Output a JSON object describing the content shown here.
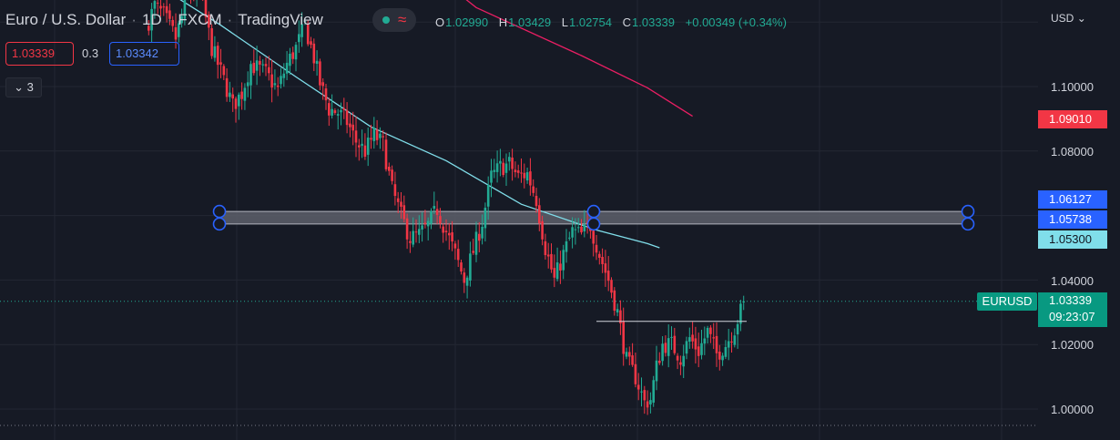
{
  "header": {
    "pair": "Euro / U.S. Dollar",
    "interval": "1D",
    "source": "FXCM",
    "platform": "TradingView",
    "open_label": "O",
    "open": "1.02990",
    "high_label": "H",
    "high": "1.03429",
    "low_label": "L",
    "low": "1.02754",
    "close_label": "C",
    "close": "1.03339",
    "change": "+0.00349 (+0.34%)"
  },
  "trade": {
    "sell_price": "1.03339",
    "spread": "0.3",
    "buy_price": "1.03342"
  },
  "indicators_count": "3",
  "currency": "USD",
  "price_axis": {
    "ticks": [
      "1.10000",
      "1.08000",
      "1.04000",
      "1.02000",
      "1.00000"
    ],
    "tags": {
      "ma_red": "1.09010",
      "zone_top": "1.06127",
      "zone_bottom": "1.05738",
      "ma_cyan": "1.05300",
      "last_price": "1.03339",
      "countdown": "09:23:07",
      "symbol": "EURUSD"
    }
  },
  "colors": {
    "bull": "#22ab94",
    "bear": "#f23645",
    "ma_slow": "#e91e63",
    "ma_fast": "#80deea",
    "zone_handle": "#2962ff"
  },
  "chart_data": {
    "type": "candlestick",
    "symbol": "EURUSD",
    "timeframe": "1D",
    "ylim": [
      0.995,
      1.127
    ],
    "y_ticks": [
      1.0,
      1.02,
      1.04,
      1.08,
      1.1
    ],
    "last_price": 1.03339,
    "zone": {
      "top": 1.06127,
      "bottom": 1.05738
    },
    "horizontal_level": 1.0272,
    "ma_slow": {
      "last": 1.0901,
      "points": [
        [
          95,
          1.1356
        ],
        [
          110,
          1.1245
        ],
        [
          145,
          1.1096
        ],
        [
          167,
          1.0996
        ],
        [
          182,
          1.0908
        ]
      ]
    },
    "ma_fast": {
      "last": 1.053,
      "points": [
        [
          0,
          1.1337
        ],
        [
          25,
          1.119
        ],
        [
          50,
          1.103
        ],
        [
          75,
          1.0875
        ],
        [
          100,
          1.077
        ],
        [
          125,
          1.0635
        ],
        [
          150,
          1.0555
        ],
        [
          167,
          1.0513
        ],
        [
          171,
          1.05
        ]
      ]
    },
    "close_path": [
      [
        0,
        1.118
      ],
      [
        3,
        1.125
      ],
      [
        6,
        1.122
      ],
      [
        10,
        1.115
      ],
      [
        14,
        1.128
      ],
      [
        18,
        1.13
      ],
      [
        22,
        1.112
      ],
      [
        26,
        1.102
      ],
      [
        29,
        1.094
      ],
      [
        32,
        1.098
      ],
      [
        35,
        1.107
      ],
      [
        40,
        1.104
      ],
      [
        44,
        1.099
      ],
      [
        47,
        1.107
      ],
      [
        50,
        1.112
      ],
      [
        53,
        1.119
      ],
      [
        56,
        1.109
      ],
      [
        58,
        1.101
      ],
      [
        61,
        1.093
      ],
      [
        64,
        1.092
      ],
      [
        67,
        1.089
      ],
      [
        70,
        1.083
      ],
      [
        73,
        1.08
      ],
      [
        76,
        1.085
      ],
      [
        79,
        1.082
      ],
      [
        82,
        1.068
      ],
      [
        85,
        1.06
      ],
      [
        88,
        1.053
      ],
      [
        91,
        1.054
      ],
      [
        94,
        1.057
      ],
      [
        97,
        1.062
      ],
      [
        100,
        1.055
      ],
      [
        103,
        1.048
      ],
      [
        106,
        1.04
      ],
      [
        109,
        1.049
      ],
      [
        112,
        1.058
      ],
      [
        115,
        1.072
      ],
      [
        118,
        1.075
      ],
      [
        121,
        1.076
      ],
      [
        124,
        1.072
      ],
      [
        127,
        1.073
      ],
      [
        130,
        1.065
      ],
      [
        133,
        1.05
      ],
      [
        136,
        1.04
      ],
      [
        139,
        1.048
      ],
      [
        142,
        1.055
      ],
      [
        145,
        1.054
      ],
      [
        148,
        1.057
      ],
      [
        151,
        1.048
      ],
      [
        154,
        1.04
      ],
      [
        157,
        1.03
      ],
      [
        160,
        1.015
      ],
      [
        163,
        1.01
      ],
      [
        166,
        1.002
      ],
      [
        168,
        1.003
      ],
      [
        170,
        1.013
      ],
      [
        172,
        1.02
      ],
      [
        175,
        1.02
      ],
      [
        178,
        1.016
      ],
      [
        181,
        1.022
      ],
      [
        184,
        1.018
      ],
      [
        187,
        1.024
      ],
      [
        190,
        1.017
      ],
      [
        193,
        1.02
      ],
      [
        196,
        1.025
      ],
      [
        199,
        1.033
      ]
    ]
  }
}
